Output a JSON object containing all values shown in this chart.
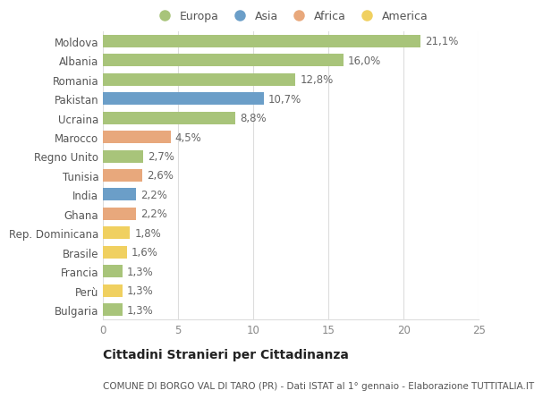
{
  "categories": [
    "Moldova",
    "Albania",
    "Romania",
    "Pakistan",
    "Ucraina",
    "Marocco",
    "Regno Unito",
    "Tunisia",
    "India",
    "Ghana",
    "Rep. Dominicana",
    "Brasile",
    "Francia",
    "Perù",
    "Bulgaria"
  ],
  "values": [
    21.1,
    16.0,
    12.8,
    10.7,
    8.8,
    4.5,
    2.7,
    2.6,
    2.2,
    2.2,
    1.8,
    1.6,
    1.3,
    1.3,
    1.3
  ],
  "labels": [
    "21,1%",
    "16,0%",
    "12,8%",
    "10,7%",
    "8,8%",
    "4,5%",
    "2,7%",
    "2,6%",
    "2,2%",
    "2,2%",
    "1,8%",
    "1,6%",
    "1,3%",
    "1,3%",
    "1,3%"
  ],
  "continents": [
    "Europa",
    "Europa",
    "Europa",
    "Asia",
    "Europa",
    "Africa",
    "Europa",
    "Africa",
    "Asia",
    "Africa",
    "America",
    "America",
    "Europa",
    "America",
    "Europa"
  ],
  "colors": {
    "Europa": "#a8c47a",
    "Asia": "#6b9ec8",
    "Africa": "#e8a87c",
    "America": "#f0d060"
  },
  "legend_order": [
    "Europa",
    "Asia",
    "Africa",
    "America"
  ],
  "xlim": [
    0,
    25
  ],
  "xticks": [
    0,
    5,
    10,
    15,
    20,
    25
  ],
  "title": "Cittadini Stranieri per Cittadinanza",
  "subtitle": "COMUNE DI BORGO VAL DI TARO (PR) - Dati ISTAT al 1° gennaio - Elaborazione TUTTITALIA.IT",
  "background_color": "#ffffff",
  "bar_height": 0.65,
  "grid_color": "#dddddd",
  "label_fontsize": 8.5,
  "tick_fontsize": 8.5,
  "title_fontsize": 10,
  "subtitle_fontsize": 7.5
}
